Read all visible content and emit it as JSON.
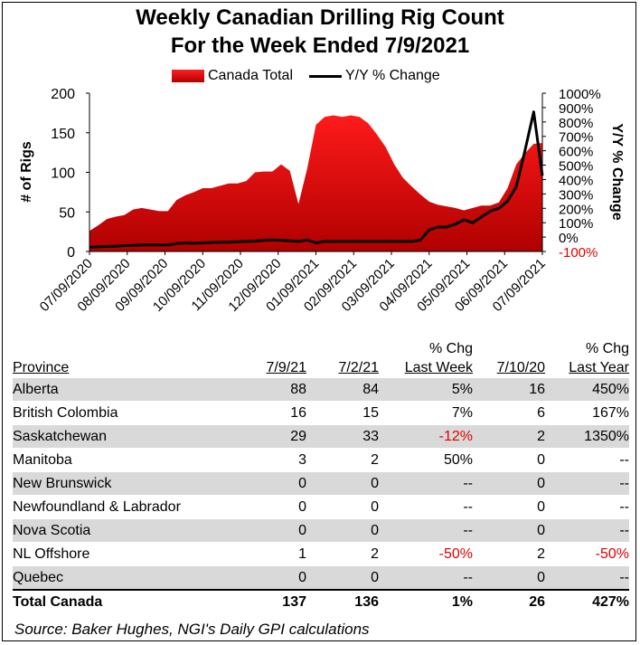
{
  "title_line1": "Weekly Canadian Drilling Rig Count",
  "title_line2": "For the Week Ended 7/9/2021",
  "legend": {
    "area": "Canada Total",
    "line": "Y/Y % Change"
  },
  "colors": {
    "area": "#e00000",
    "line": "#000000",
    "negative": "#e00000",
    "shade": "#d9d9d9"
  },
  "chart_data": {
    "type": "area",
    "ylabel": "# of Rigs",
    "y2label": "Y/Y % Change",
    "ylim": [
      0,
      200
    ],
    "y2lim": [
      -100,
      1000
    ],
    "yticks": [
      "0",
      "50",
      "100",
      "150",
      "200"
    ],
    "y2ticks": [
      "-100%",
      "0%",
      "100%",
      "200%",
      "300%",
      "400%",
      "500%",
      "600%",
      "700%",
      "800%",
      "900%",
      "1000%"
    ],
    "xticks": [
      "07/09/2020",
      "08/09/2020",
      "09/09/2020",
      "10/09/2020",
      "11/09/2020",
      "12/09/2020",
      "01/09/2021",
      "02/09/2021",
      "03/09/2021",
      "04/09/2021",
      "05/09/2021",
      "06/09/2021",
      "07/09/2021"
    ],
    "x": [
      "07/09/2020",
      "07/16/2020",
      "07/23/2020",
      "07/30/2020",
      "08/06/2020",
      "08/13/2020",
      "08/20/2020",
      "08/27/2020",
      "09/03/2020",
      "09/10/2020",
      "09/17/2020",
      "09/24/2020",
      "10/01/2020",
      "10/08/2020",
      "10/15/2020",
      "10/22/2020",
      "10/29/2020",
      "11/05/2020",
      "11/12/2020",
      "11/19/2020",
      "11/26/2020",
      "12/03/2020",
      "12/10/2020",
      "12/17/2020",
      "12/24/2020",
      "12/31/2020",
      "01/07/2021",
      "01/14/2021",
      "01/21/2021",
      "01/28/2021",
      "02/04/2021",
      "02/11/2021",
      "02/18/2021",
      "02/25/2021",
      "03/04/2021",
      "03/11/2021",
      "03/18/2021",
      "03/25/2021",
      "04/01/2021",
      "04/08/2021",
      "04/15/2021",
      "04/22/2021",
      "04/29/2021",
      "05/06/2021",
      "05/13/2021",
      "05/20/2021",
      "05/27/2021",
      "06/03/2021",
      "06/10/2021",
      "06/17/2021",
      "06/24/2021",
      "07/01/2021",
      "07/09/2021"
    ],
    "series": [
      {
        "name": "Canada Total",
        "axis": "left",
        "values": [
          26,
          33,
          41,
          44,
          46,
          53,
          55,
          53,
          51,
          51,
          65,
          71,
          75,
          80,
          80,
          83,
          86,
          86,
          89,
          100,
          101,
          101,
          110,
          102,
          60,
          105,
          160,
          170,
          172,
          170,
          172,
          170,
          162,
          148,
          132,
          110,
          93,
          82,
          72,
          63,
          59,
          57,
          55,
          52,
          55,
          58,
          58,
          62,
          80,
          110,
          124,
          136,
          137
        ]
      },
      {
        "name": "Y/Y % Change",
        "axis": "right",
        "values": [
          -70,
          -68,
          -65,
          -63,
          -60,
          -57,
          -55,
          -55,
          -55,
          -55,
          -45,
          -40,
          -43,
          -40,
          -37,
          -36,
          -35,
          -33,
          -30,
          -28,
          -22,
          -20,
          -22,
          -25,
          -30,
          -20,
          -40,
          -30,
          -30,
          -30,
          -30,
          -30,
          -30,
          -30,
          -30,
          -30,
          -30,
          -30,
          -20,
          50,
          70,
          70,
          90,
          120,
          100,
          140,
          180,
          200,
          250,
          350,
          600,
          870,
          427
        ]
      }
    ]
  },
  "table": {
    "header_top": [
      "",
      "",
      "",
      "% Chg",
      "",
      "% Chg"
    ],
    "header": [
      "Province",
      "7/9/21",
      "7/2/21",
      "Last Week",
      "7/10/20",
      "Last Year"
    ],
    "rows": [
      {
        "province": "Alberta",
        "cur": "88",
        "prev": "84",
        "chg_week": "5%",
        "year_ago": "16",
        "chg_year": "450%"
      },
      {
        "province": "British Colombia",
        "cur": "16",
        "prev": "15",
        "chg_week": "7%",
        "year_ago": "6",
        "chg_year": "167%"
      },
      {
        "province": "Saskatchewan",
        "cur": "29",
        "prev": "33",
        "chg_week": "-12%",
        "year_ago": "2",
        "chg_year": "1350%"
      },
      {
        "province": "Manitoba",
        "cur": "3",
        "prev": "2",
        "chg_week": "50%",
        "year_ago": "0",
        "chg_year": "--"
      },
      {
        "province": "New Brunswick",
        "cur": "0",
        "prev": "0",
        "chg_week": "--",
        "year_ago": "0",
        "chg_year": "--"
      },
      {
        "province": "Newfoundland & Labrador",
        "cur": "0",
        "prev": "0",
        "chg_week": "--",
        "year_ago": "0",
        "chg_year": "--"
      },
      {
        "province": "Nova Scotia",
        "cur": "0",
        "prev": "0",
        "chg_week": "--",
        "year_ago": "0",
        "chg_year": "--"
      },
      {
        "province": "NL Offshore",
        "cur": "1",
        "prev": "2",
        "chg_week": "-50%",
        "year_ago": "2",
        "chg_year": "-50%"
      },
      {
        "province": "Quebec",
        "cur": "0",
        "prev": "0",
        "chg_week": "--",
        "year_ago": "0",
        "chg_year": "--"
      }
    ],
    "total": {
      "province": "Total Canada",
      "cur": "137",
      "prev": "136",
      "chg_week": "1%",
      "year_ago": "26",
      "chg_year": "427%"
    }
  },
  "source": "Source: Baker Hughes, NGI's Daily GPI calculations"
}
